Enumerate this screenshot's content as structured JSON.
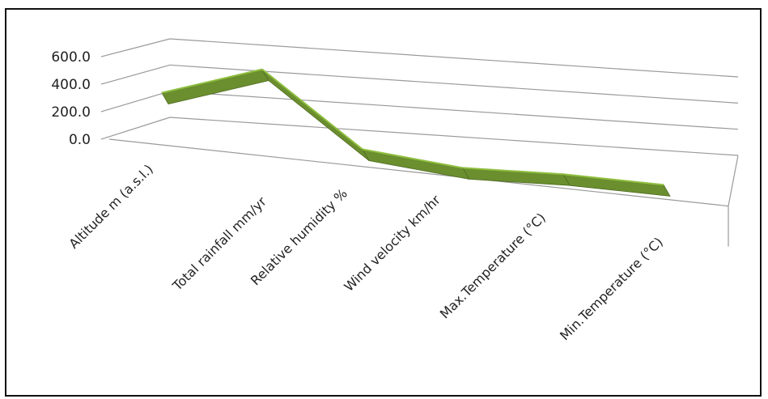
{
  "chart_data": {
    "type": "line",
    "style": "3d-ribbon",
    "categories": [
      "Altitude m (a.s.l.)",
      "Total rainfall  mm/yr",
      "Relative humidity %",
      "Wind velocity  km/hr",
      "Max.Temperature (°C)",
      "Min.Temperature (°C)"
    ],
    "values": [
      350,
      570,
      80,
      12,
      28,
      14
    ],
    "yticks": [
      "0.0",
      "200.0",
      "400.0",
      "600.0"
    ],
    "ylim": [
      0,
      600
    ],
    "grid": true,
    "legend": "none",
    "colors": {
      "ribbon_top": "#8fbf3f",
      "ribbon_face": "#6b8e2f",
      "ribbon_edge": "#4f6b20",
      "grid": "#9a9a9a"
    }
  }
}
